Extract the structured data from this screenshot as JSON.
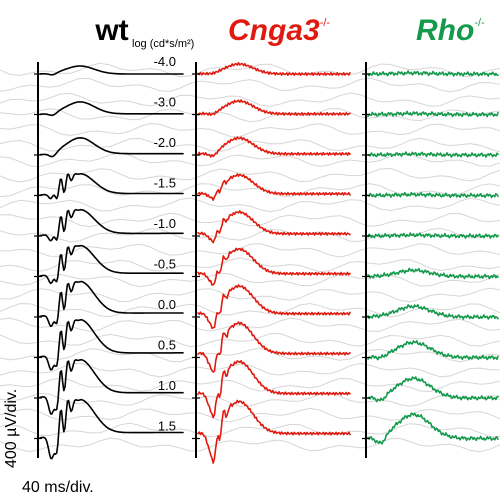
{
  "chart_data": {
    "type": "line",
    "panels": [
      {
        "title": "wt",
        "superscript": "",
        "color": "#000000"
      },
      {
        "title": "Cnga3",
        "superscript": "-/-",
        "color": "#e01a0f"
      },
      {
        "title": "Rho",
        "superscript": "-/-",
        "color": "#15994a"
      }
    ],
    "intensity_unit": "log (cd*s/m²)",
    "intensities": [
      "-4.0",
      "-3.0",
      "-2.0",
      "-1.5",
      "-1.0",
      "-0.5",
      "0.0",
      "0.5",
      "1.0",
      "1.5"
    ],
    "scale_bar_y": "400 µV/div.",
    "scale_bar_x": "40 ms/div."
  }
}
